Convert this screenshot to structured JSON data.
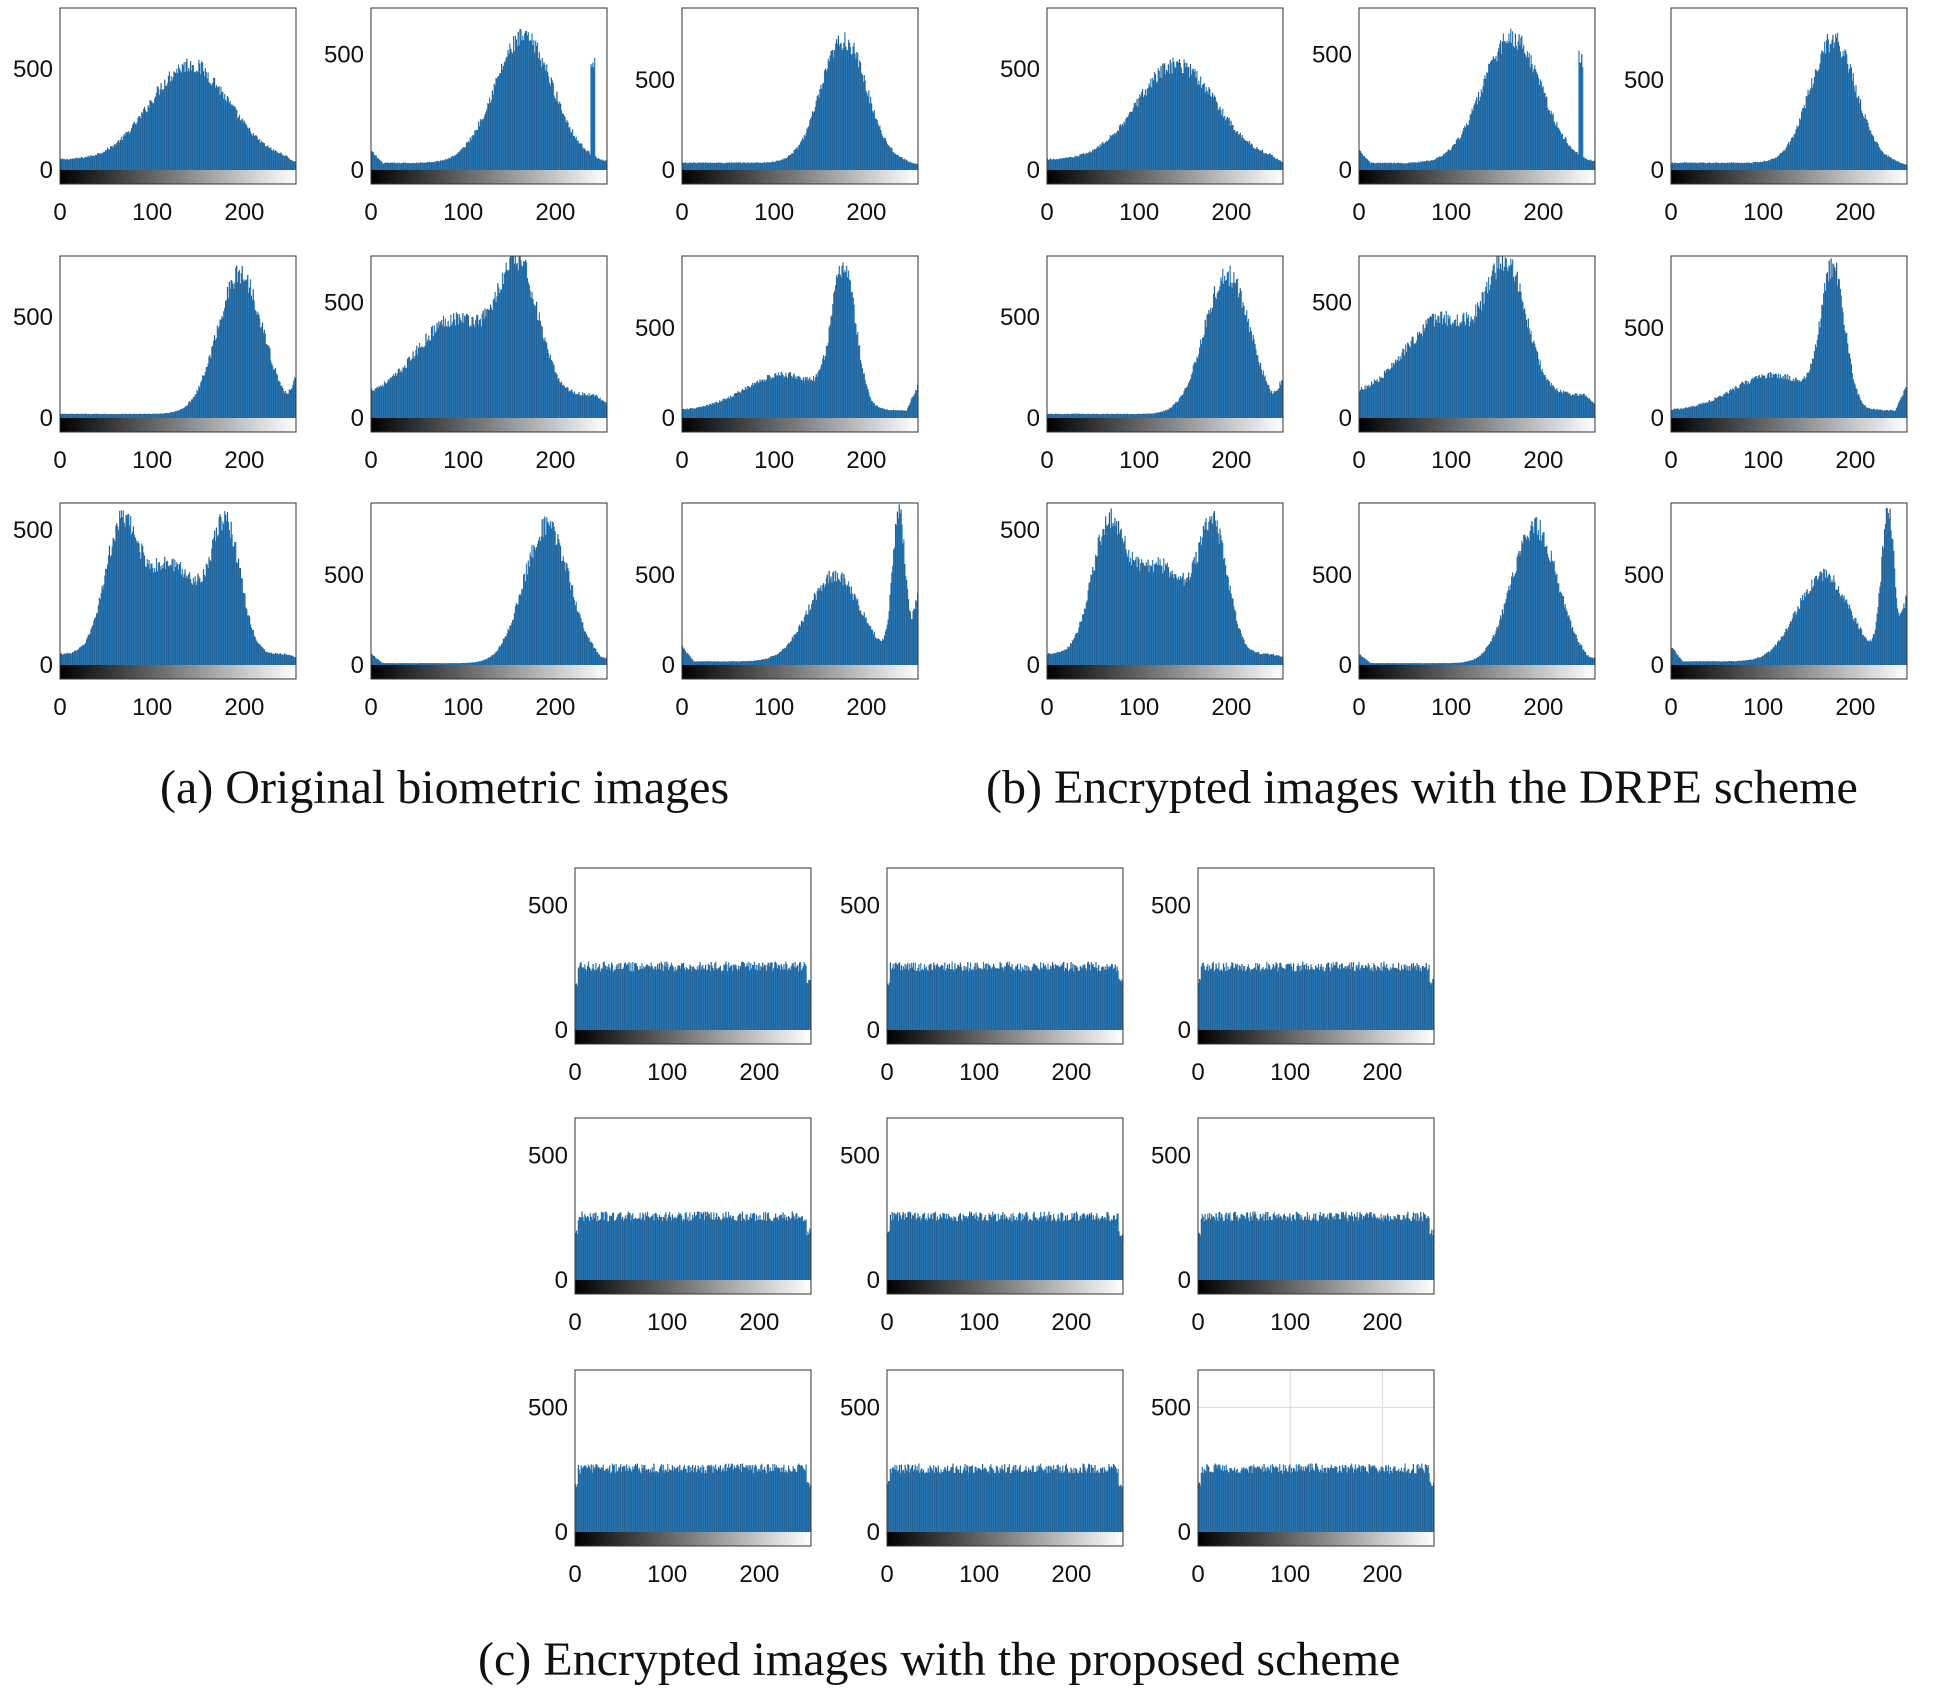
{
  "figure": {
    "captions": {
      "a": "(a) Original biometric images",
      "b": "(b) Encrypted images with the DRPE scheme",
      "c": "(c) Encrypted images with the proposed scheme"
    },
    "colors": {
      "bar": "#2a7ab9",
      "bar_dark": "#1f5e92",
      "frame": "#333333",
      "grid": "#d9d9d9"
    }
  },
  "chart_data": [
    {
      "type": "bar",
      "panel": "a",
      "index": 1,
      "xlim": [
        0,
        255
      ],
      "ylim": [
        0,
        800
      ],
      "yticks": [
        0,
        500
      ],
      "xticks": [
        0,
        100,
        200
      ],
      "peaks": [
        {
          "x": 140,
          "y": 470,
          "w": 60
        }
      ],
      "base": 50,
      "end_low": 20,
      "end_high": 40
    },
    {
      "type": "bar",
      "panel": "a",
      "index": 2,
      "xlim": [
        0,
        255
      ],
      "ylim": [
        0,
        700
      ],
      "yticks": [
        0,
        500
      ],
      "xticks": [
        0,
        100,
        200
      ],
      "peaks": [
        {
          "x": 165,
          "y": 540,
          "w": 45
        }
      ],
      "base": 30,
      "end_low": 80,
      "end_high": 40,
      "spike": {
        "x": 240,
        "y": 480
      }
    },
    {
      "type": "bar",
      "panel": "a",
      "index": 3,
      "xlim": [
        0,
        255
      ],
      "ylim": [
        0,
        900
      ],
      "yticks": [
        0,
        500
      ],
      "xticks": [
        0,
        100,
        200
      ],
      "peaks": [
        {
          "x": 175,
          "y": 680,
          "w": 35
        }
      ],
      "base": 40,
      "end_low": 20,
      "end_high": 30
    },
    {
      "type": "bar",
      "panel": "a",
      "index": 4,
      "xlim": [
        0,
        255
      ],
      "ylim": [
        0,
        800
      ],
      "yticks": [
        0,
        500
      ],
      "xticks": [
        0,
        100,
        200
      ],
      "peaks": [
        {
          "x": 195,
          "y": 690,
          "w": 35
        }
      ],
      "base": 20,
      "end_low": 10,
      "end_high": 200
    },
    {
      "type": "bar",
      "panel": "a",
      "index": 5,
      "xlim": [
        0,
        255
      ],
      "ylim": [
        0,
        700
      ],
      "yticks": [
        0,
        500
      ],
      "xticks": [
        0,
        100,
        200
      ],
      "peaks": [
        {
          "x": 90,
          "y": 330,
          "w": 55
        },
        {
          "x": 160,
          "y": 520,
          "w": 30
        }
      ],
      "base": 100,
      "end_low": 80,
      "end_high": 60
    },
    {
      "type": "bar",
      "panel": "a",
      "index": 6,
      "xlim": [
        0,
        255
      ],
      "ylim": [
        0,
        900
      ],
      "yticks": [
        0,
        500
      ],
      "xticks": [
        0,
        100,
        200
      ],
      "peaks": [
        {
          "x": 175,
          "y": 750,
          "w": 18
        },
        {
          "x": 110,
          "y": 200,
          "w": 60
        }
      ],
      "base": 40,
      "end_low": 20,
      "end_high": 180
    },
    {
      "type": "bar",
      "panel": "a",
      "index": 7,
      "xlim": [
        0,
        255
      ],
      "ylim": [
        0,
        600
      ],
      "yticks": [
        0,
        500
      ],
      "xticks": [
        0,
        100,
        200
      ],
      "peaks": [
        {
          "x": 65,
          "y": 420,
          "w": 25
        },
        {
          "x": 120,
          "y": 330,
          "w": 45
        },
        {
          "x": 180,
          "y": 440,
          "w": 22
        }
      ],
      "base": 40,
      "end_low": 40,
      "end_high": 30
    },
    {
      "type": "bar",
      "panel": "a",
      "index": 8,
      "xlim": [
        0,
        255
      ],
      "ylim": [
        0,
        900
      ],
      "yticks": [
        0,
        500
      ],
      "xticks": [
        0,
        100,
        200
      ],
      "peaks": [
        {
          "x": 190,
          "y": 760,
          "w": 35
        }
      ],
      "base": 10,
      "end_low": 60,
      "end_high": 40
    },
    {
      "type": "bar",
      "panel": "a",
      "index": 9,
      "xlim": [
        0,
        255
      ],
      "ylim": [
        0,
        900
      ],
      "yticks": [
        0,
        500
      ],
      "xticks": [
        0,
        100,
        200
      ],
      "peaks": [
        {
          "x": 235,
          "y": 820,
          "w": 10
        },
        {
          "x": 165,
          "y": 480,
          "w": 40
        }
      ],
      "base": 20,
      "end_low": 100,
      "end_high": 400
    },
    {
      "type": "bar",
      "panel": "b",
      "index": 1,
      "xlim": [
        0,
        255
      ],
      "ylim": [
        0,
        800
      ],
      "yticks": [
        0,
        500
      ],
      "xticks": [
        0,
        100,
        200
      ],
      "peaks": [
        {
          "x": 140,
          "y": 470,
          "w": 60
        }
      ],
      "base": 50,
      "end_low": 20,
      "end_high": 40
    },
    {
      "type": "bar",
      "panel": "b",
      "index": 2,
      "xlim": [
        0,
        255
      ],
      "ylim": [
        0,
        700
      ],
      "yticks": [
        0,
        500
      ],
      "xticks": [
        0,
        100,
        200
      ],
      "peaks": [
        {
          "x": 165,
          "y": 540,
          "w": 45
        }
      ],
      "base": 30,
      "end_low": 80,
      "end_high": 40,
      "spike": {
        "x": 240,
        "y": 480
      }
    },
    {
      "type": "bar",
      "panel": "b",
      "index": 3,
      "xlim": [
        0,
        255
      ],
      "ylim": [
        0,
        900
      ],
      "yticks": [
        0,
        500
      ],
      "xticks": [
        0,
        100,
        200
      ],
      "peaks": [
        {
          "x": 175,
          "y": 680,
          "w": 35
        }
      ],
      "base": 40,
      "end_low": 20,
      "end_high": 30
    },
    {
      "type": "bar",
      "panel": "b",
      "index": 4,
      "xlim": [
        0,
        255
      ],
      "ylim": [
        0,
        800
      ],
      "yticks": [
        0,
        500
      ],
      "xticks": [
        0,
        100,
        200
      ],
      "peaks": [
        {
          "x": 195,
          "y": 690,
          "w": 35
        }
      ],
      "base": 20,
      "end_low": 10,
      "end_high": 200
    },
    {
      "type": "bar",
      "panel": "b",
      "index": 5,
      "xlim": [
        0,
        255
      ],
      "ylim": [
        0,
        700
      ],
      "yticks": [
        0,
        500
      ],
      "xticks": [
        0,
        100,
        200
      ],
      "peaks": [
        {
          "x": 90,
          "y": 330,
          "w": 55
        },
        {
          "x": 160,
          "y": 520,
          "w": 30
        }
      ],
      "base": 100,
      "end_low": 80,
      "end_high": 60
    },
    {
      "type": "bar",
      "panel": "b",
      "index": 6,
      "xlim": [
        0,
        255
      ],
      "ylim": [
        0,
        900
      ],
      "yticks": [
        0,
        500
      ],
      "xticks": [
        0,
        100,
        200
      ],
      "peaks": [
        {
          "x": 175,
          "y": 750,
          "w": 18
        },
        {
          "x": 110,
          "y": 200,
          "w": 60
        }
      ],
      "base": 40,
      "end_low": 20,
      "end_high": 180
    },
    {
      "type": "bar",
      "panel": "b",
      "index": 7,
      "xlim": [
        0,
        255
      ],
      "ylim": [
        0,
        600
      ],
      "yticks": [
        0,
        500
      ],
      "xticks": [
        0,
        100,
        200
      ],
      "peaks": [
        {
          "x": 65,
          "y": 420,
          "w": 25
        },
        {
          "x": 120,
          "y": 330,
          "w": 45
        },
        {
          "x": 180,
          "y": 440,
          "w": 22
        }
      ],
      "base": 40,
      "end_low": 40,
      "end_high": 30
    },
    {
      "type": "bar",
      "panel": "b",
      "index": 8,
      "xlim": [
        0,
        255
      ],
      "ylim": [
        0,
        900
      ],
      "yticks": [
        0,
        500
      ],
      "xticks": [
        0,
        100,
        200
      ],
      "peaks": [
        {
          "x": 190,
          "y": 760,
          "w": 35
        }
      ],
      "base": 10,
      "end_low": 60,
      "end_high": 40
    },
    {
      "type": "bar",
      "panel": "b",
      "index": 9,
      "xlim": [
        0,
        255
      ],
      "ylim": [
        0,
        900
      ],
      "yticks": [
        0,
        500
      ],
      "xticks": [
        0,
        100,
        200
      ],
      "peaks": [
        {
          "x": 235,
          "y": 820,
          "w": 10
        },
        {
          "x": 165,
          "y": 480,
          "w": 40
        }
      ],
      "base": 20,
      "end_low": 100,
      "end_high": 400
    },
    {
      "type": "bar",
      "panel": "c",
      "index": 1,
      "xlim": [
        0,
        255
      ],
      "ylim": [
        0,
        650
      ],
      "yticks": [
        0,
        500
      ],
      "xticks": [
        0,
        100,
        200
      ],
      "flat": 255
    },
    {
      "type": "bar",
      "panel": "c",
      "index": 2,
      "xlim": [
        0,
        255
      ],
      "ylim": [
        0,
        650
      ],
      "yticks": [
        0,
        500
      ],
      "xticks": [
        0,
        100,
        200
      ],
      "flat": 255
    },
    {
      "type": "bar",
      "panel": "c",
      "index": 3,
      "xlim": [
        0,
        255
      ],
      "ylim": [
        0,
        650
      ],
      "yticks": [
        0,
        500
      ],
      "xticks": [
        0,
        100,
        200
      ],
      "flat": 255
    },
    {
      "type": "bar",
      "panel": "c",
      "index": 4,
      "xlim": [
        0,
        255
      ],
      "ylim": [
        0,
        650
      ],
      "yticks": [
        0,
        500
      ],
      "xticks": [
        0,
        100,
        200
      ],
      "flat": 255
    },
    {
      "type": "bar",
      "panel": "c",
      "index": 5,
      "xlim": [
        0,
        255
      ],
      "ylim": [
        0,
        650
      ],
      "yticks": [
        0,
        500
      ],
      "xticks": [
        0,
        100,
        200
      ],
      "flat": 255
    },
    {
      "type": "bar",
      "panel": "c",
      "index": 6,
      "xlim": [
        0,
        255
      ],
      "ylim": [
        0,
        650
      ],
      "yticks": [
        0,
        500
      ],
      "xticks": [
        0,
        100,
        200
      ],
      "flat": 255
    },
    {
      "type": "bar",
      "panel": "c",
      "index": 7,
      "xlim": [
        0,
        255
      ],
      "ylim": [
        0,
        650
      ],
      "yticks": [
        0,
        500
      ],
      "xticks": [
        0,
        100,
        200
      ],
      "flat": 255
    },
    {
      "type": "bar",
      "panel": "c",
      "index": 8,
      "xlim": [
        0,
        255
      ],
      "ylim": [
        0,
        650
      ],
      "yticks": [
        0,
        500
      ],
      "xticks": [
        0,
        100,
        200
      ],
      "flat": 255
    },
    {
      "type": "bar",
      "panel": "c",
      "index": 9,
      "xlim": [
        0,
        255
      ],
      "ylim": [
        0,
        650
      ],
      "yticks": [
        0,
        500
      ],
      "xticks": [
        0,
        100,
        200
      ],
      "flat": 255,
      "grid": true
    }
  ]
}
